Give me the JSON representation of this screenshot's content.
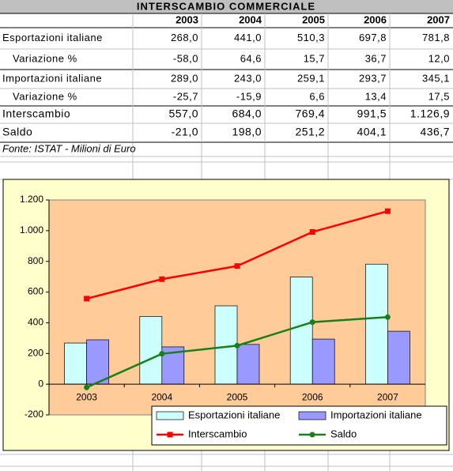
{
  "table": {
    "title": "INTERSCAMBIO COMMERCIALE",
    "header": [
      "2003",
      "2004",
      "2005",
      "2006",
      "2007"
    ],
    "rows": [
      [
        "Esportazioni italiane",
        "268,0",
        "441,0",
        "510,3",
        "697,8",
        "781,8"
      ],
      [
        "Variazione %",
        "-58,0",
        "64,6",
        "15,7",
        "36,7",
        "12,0"
      ],
      [
        "Importazioni italiane",
        "289,0",
        "243,0",
        "259,1",
        "293,7",
        "345,1"
      ],
      [
        "Variazione %",
        "-25,7",
        "-15,9",
        "6,6",
        "13,4",
        "17,5"
      ],
      [
        "Interscambio",
        "557,0",
        "684,0",
        "769,4",
        "991,5",
        "1.126,9"
      ],
      [
        "Saldo",
        "-21,0",
        "198,0",
        "251,2",
        "404,1",
        "436,7"
      ]
    ],
    "source": "Fonte: ISTAT - Milioni di Euro"
  },
  "chart_data": {
    "type": "combo",
    "categories": [
      "2003",
      "2004",
      "2005",
      "2006",
      "2007"
    ],
    "series": [
      {
        "name": "Esportazioni italiane",
        "type": "bar",
        "color": "#ccffff",
        "values": [
          268.0,
          441.0,
          510.3,
          697.8,
          781.8
        ]
      },
      {
        "name": "Importazioni italiane",
        "type": "bar",
        "color": "#9999ff",
        "values": [
          289.0,
          243.0,
          259.1,
          293.7,
          345.1
        ]
      },
      {
        "name": "Interscambio",
        "type": "line",
        "marker": "square",
        "color": "#ff0000",
        "values": [
          557.0,
          684.0,
          769.4,
          991.5,
          1126.9
        ]
      },
      {
        "name": "Saldo",
        "type": "line",
        "marker": "circle",
        "color": "#1a7f1a",
        "values": [
          -21.0,
          198.0,
          251.2,
          404.1,
          436.7
        ]
      }
    ],
    "ylim": [
      -200,
      1200
    ],
    "yticks": [
      -200,
      0,
      200,
      400,
      600,
      800,
      {
        "value": 1000,
        "label": "1.000"
      },
      {
        "value": 1200,
        "label": "1.200"
      }
    ],
    "grid": false,
    "legend": "lower-right",
    "plot_background": "#ffcc99",
    "chart_background": "#ffffcc"
  }
}
